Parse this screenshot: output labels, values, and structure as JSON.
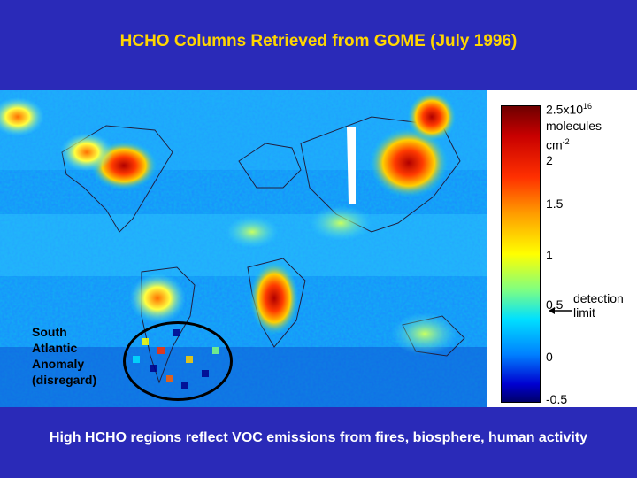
{
  "title": "HCHO Columns Retrieved from GOME (July 1996)",
  "colorbar": {
    "unit_line1": "2.5x10",
    "unit_exp": "16",
    "unit_line2": "molecules",
    "unit_line3": "cm",
    "unit_line3_exp": "-2",
    "ticks": [
      "2",
      "1.5",
      "1",
      "0.5",
      "0",
      "-0.5"
    ],
    "range": [
      -0.5,
      2.5
    ],
    "colors": [
      "#00006a",
      "#0000d0",
      "#0080ff",
      "#00e0ff",
      "#80ff80",
      "#ffff00",
      "#ff9a00",
      "#ff3000",
      "#c80000",
      "#6e0000"
    ]
  },
  "detection_limit": {
    "line1": "detection",
    "line2": "limit",
    "value": 0.5
  },
  "south_atlantic_anomaly": {
    "line1": "South",
    "line2": "Atlantic",
    "line3": "Anomaly",
    "line4": "(disregard)"
  },
  "caption": "High HCHO regions reflect VOC emissions from fires, biosphere, human activity"
}
